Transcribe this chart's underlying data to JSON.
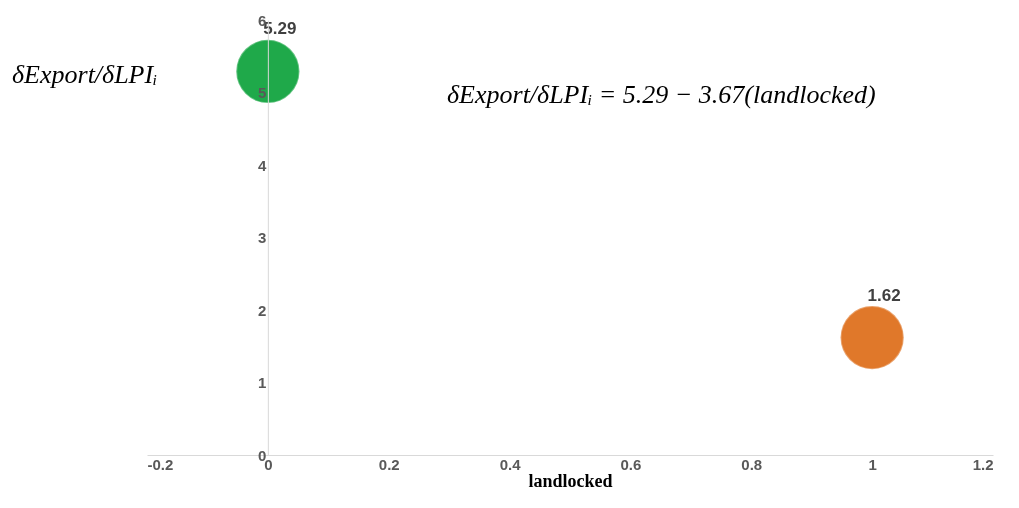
{
  "chart_data": {
    "type": "bubble",
    "xlabel": "landlocked",
    "ylabel": "δExport/δLPIᵢ",
    "annotations": [
      "δExport/δLPIᵢ = 5.29 − 3.67(landlocked)"
    ],
    "x": [
      0,
      1
    ],
    "values": [
      5.29,
      1.62
    ],
    "sizes": [
      1,
      1
    ],
    "colors": [
      "#1fa94a",
      "#e0782a"
    ],
    "data_labels": true,
    "xlim": [
      -0.2,
      1.2
    ],
    "xticks": [
      -0.2,
      0,
      0.2,
      0.4,
      0.6,
      0.8,
      1,
      1.2
    ],
    "ylim": [
      0,
      6
    ],
    "yticks": [
      0,
      1,
      2,
      3,
      4,
      5,
      6
    ],
    "grid": false,
    "legend": false
  }
}
